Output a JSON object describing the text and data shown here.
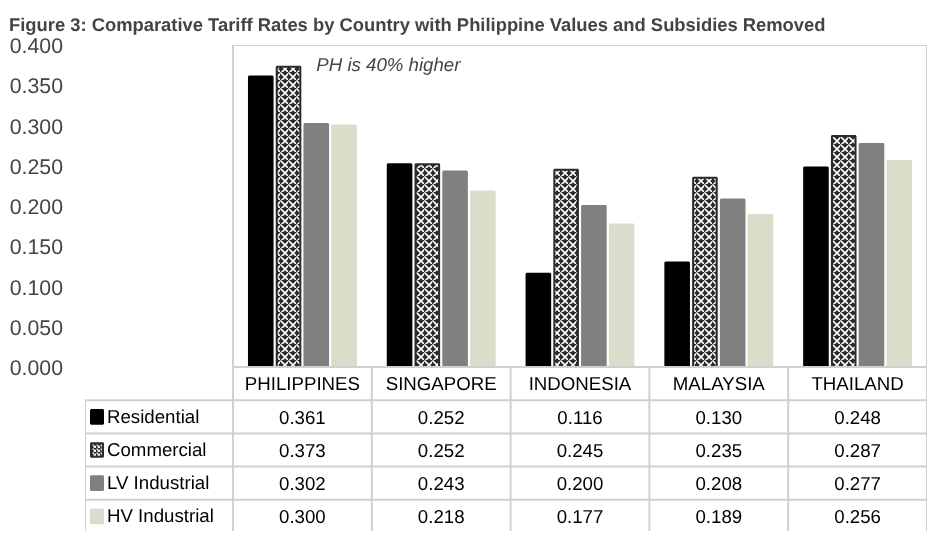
{
  "chart_data": {
    "type": "bar",
    "title": "Figure 3: Comparative Tariff Rates by Country with Philippine Values and Subsidies Removed",
    "categories": [
      "PHILIPPINES",
      "SINGAPORE",
      "INDONESIA",
      "MALAYSIA",
      "THAILAND"
    ],
    "series": [
      {
        "name": "Residential",
        "color": "#000000",
        "values": [
          0.361,
          0.252,
          0.116,
          0.13,
          0.248
        ],
        "value_labels": [
          "0.361",
          "0.252",
          "0.116",
          "0.130",
          "0.248"
        ]
      },
      {
        "name": "Commercial",
        "color": "#2b2b2b",
        "values": [
          0.373,
          0.252,
          0.245,
          0.235,
          0.287
        ],
        "value_labels": [
          "0.373",
          "0.252",
          "0.245",
          "0.235",
          "0.287"
        ]
      },
      {
        "name": "LV Industrial",
        "color": "#808080",
        "values": [
          0.302,
          0.243,
          0.2,
          0.208,
          0.277
        ],
        "value_labels": [
          "0.302",
          "0.243",
          "0.200",
          "0.208",
          "0.277"
        ]
      },
      {
        "name": "HV Industrial",
        "color": "#dcdccb",
        "values": [
          0.3,
          0.218,
          0.177,
          0.189,
          0.256
        ],
        "value_labels": [
          "0.300",
          "0.218",
          "0.177",
          "0.189",
          "0.256"
        ]
      }
    ],
    "ylim": [
      0,
      0.4
    ],
    "yticks": [
      "0.000",
      "0.050",
      "0.100",
      "0.150",
      "0.200",
      "0.250",
      "0.300",
      "0.350",
      "0.400"
    ],
    "grid": false,
    "legend": "bottom",
    "annotations": [
      "PH is 40% higher"
    ]
  }
}
